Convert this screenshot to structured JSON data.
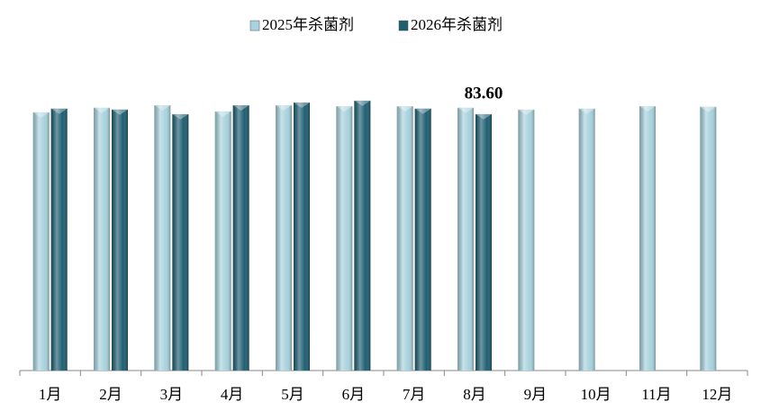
{
  "chart_data": {
    "type": "bar",
    "categories": [
      "1月",
      "2月",
      "3月",
      "4月",
      "5月",
      "6月",
      "7月",
      "8月",
      "9月",
      "10月",
      "11月",
      "12月"
    ],
    "series": [
      {
        "name": "2025年杀菌剂",
        "color": "#a8d2dd",
        "values": [
          84.2,
          85.7,
          86.5,
          84.5,
          86.5,
          86.2,
          86.2,
          85.7,
          85.1,
          85.4,
          86.2,
          86.0
        ]
      },
      {
        "name": "2026年杀菌剂",
        "color": "#1f5f72",
        "values": [
          85.4,
          85.1,
          83.6,
          86.5,
          87.4,
          88.0,
          85.4,
          83.6,
          null,
          null,
          null,
          null
        ],
        "value_labels": [
          null,
          null,
          null,
          null,
          null,
          null,
          null,
          "83.60",
          null,
          null,
          null,
          null
        ]
      }
    ],
    "ylim": [
      0,
      100
    ],
    "legend": "top"
  }
}
